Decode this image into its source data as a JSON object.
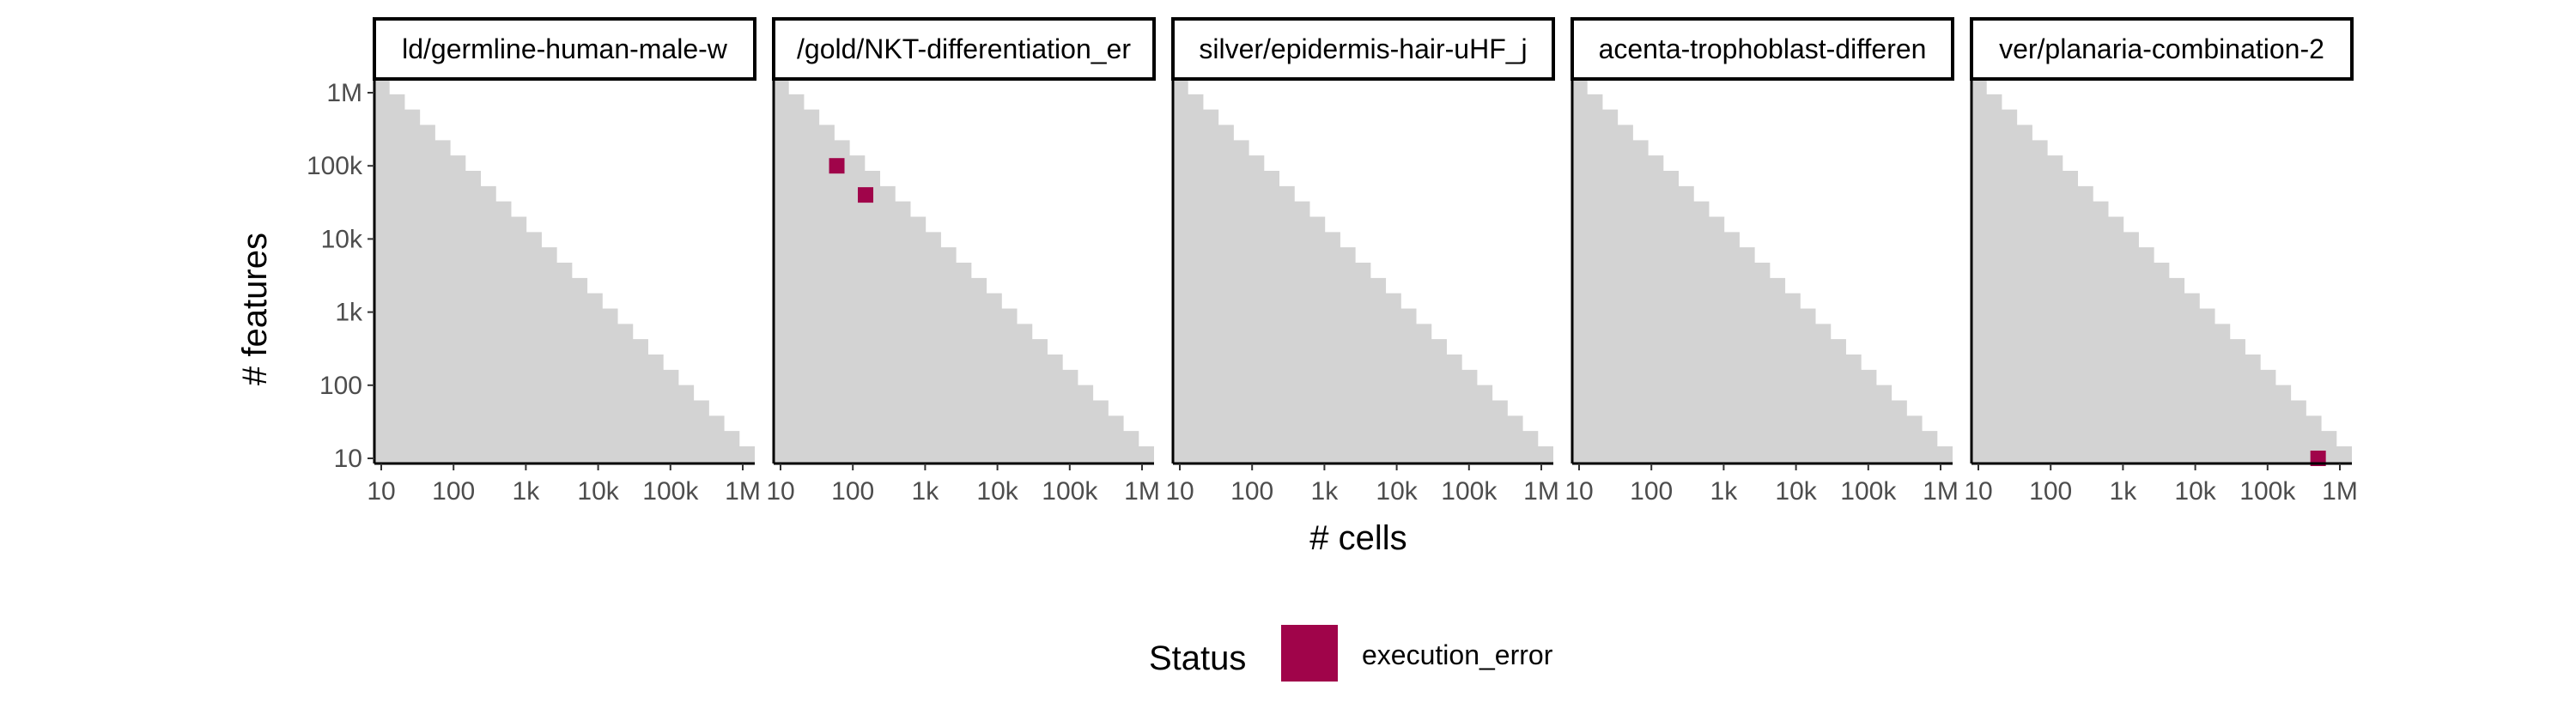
{
  "chart_data": {
    "type": "heatmap",
    "title": "",
    "xlabel": "# cells",
    "ylabel": "# features",
    "x_scale": "log10",
    "y_scale": "log10",
    "xlim": [
      10,
      1000000
    ],
    "ylim": [
      10,
      1000000
    ],
    "x_ticks": [
      {
        "value": 10,
        "label": "10"
      },
      {
        "value": 100,
        "label": "100"
      },
      {
        "value": 1000,
        "label": "1k"
      },
      {
        "value": 10000,
        "label": "10k"
      },
      {
        "value": 100000,
        "label": "100k"
      },
      {
        "value": 1000000,
        "label": "1M"
      }
    ],
    "y_ticks": [
      {
        "value": 10,
        "label": "10"
      },
      {
        "value": 100,
        "label": "100"
      },
      {
        "value": 1000,
        "label": "1k"
      },
      {
        "value": 10000,
        "label": "10k"
      },
      {
        "value": 100000,
        "label": "100k"
      },
      {
        "value": 1000000,
        "label": "1M"
      }
    ],
    "background_fill": "#d3d3d3",
    "grid": false,
    "legend": {
      "title": "Status",
      "position": "bottom",
      "entries": [
        {
          "label": "execution_error",
          "color": "#a0044a"
        }
      ]
    },
    "panels": [
      {
        "strip_label": "ld/germline-human-male-w",
        "series": [
          {
            "name": "execution_error",
            "points": []
          }
        ]
      },
      {
        "strip_label": "/gold/NKT-differentiation_er",
        "series": [
          {
            "name": "execution_error",
            "points": [
              {
                "x": 60,
                "y": 100000
              },
              {
                "x": 150,
                "y": 40000
              }
            ]
          }
        ]
      },
      {
        "strip_label": "silver/epidermis-hair-uHF_j",
        "series": [
          {
            "name": "execution_error",
            "points": []
          }
        ]
      },
      {
        "strip_label": "acenta-trophoblast-differen",
        "series": [
          {
            "name": "execution_error",
            "points": []
          }
        ]
      },
      {
        "strip_label": "ver/planaria-combination-2",
        "series": [
          {
            "name": "execution_error",
            "points": [
              {
                "x": 500000,
                "y": 10
              }
            ]
          }
        ]
      }
    ]
  }
}
